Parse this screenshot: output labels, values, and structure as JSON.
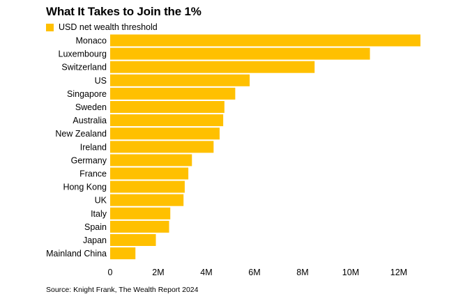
{
  "title": "What It Takes to Join the 1%",
  "source": "Source: Knight Frank, The Wealth Report 2024",
  "colors": {
    "bar": "#FFC000"
  },
  "chart_data": {
    "type": "bar",
    "orientation": "horizontal",
    "categories": [
      "Monaco",
      "Luxembourg",
      "Switzerland",
      "US",
      "Singapore",
      "Sweden",
      "Australia",
      "New Zealand",
      "Ireland",
      "Germany",
      "France",
      "Hong Kong",
      "UK",
      "Italy",
      "Spain",
      "Japan",
      "Mainland China"
    ],
    "series": [
      {
        "name": "USD net wealth threshold",
        "values": [
          12900000,
          10800000,
          8500000,
          5800000,
          5200000,
          4750000,
          4700000,
          4550000,
          4300000,
          3400000,
          3250000,
          3100000,
          3050000,
          2500000,
          2450000,
          1900000,
          1050000
        ]
      }
    ],
    "xlim": [
      0,
      12900000
    ],
    "xticks": [
      0,
      2000000,
      4000000,
      6000000,
      8000000,
      10000000,
      12000000
    ],
    "xtick_labels": [
      "0",
      "2M",
      "4M",
      "6M",
      "8M",
      "10M",
      "12M"
    ],
    "legend_position": "top-left",
    "grid": false
  }
}
